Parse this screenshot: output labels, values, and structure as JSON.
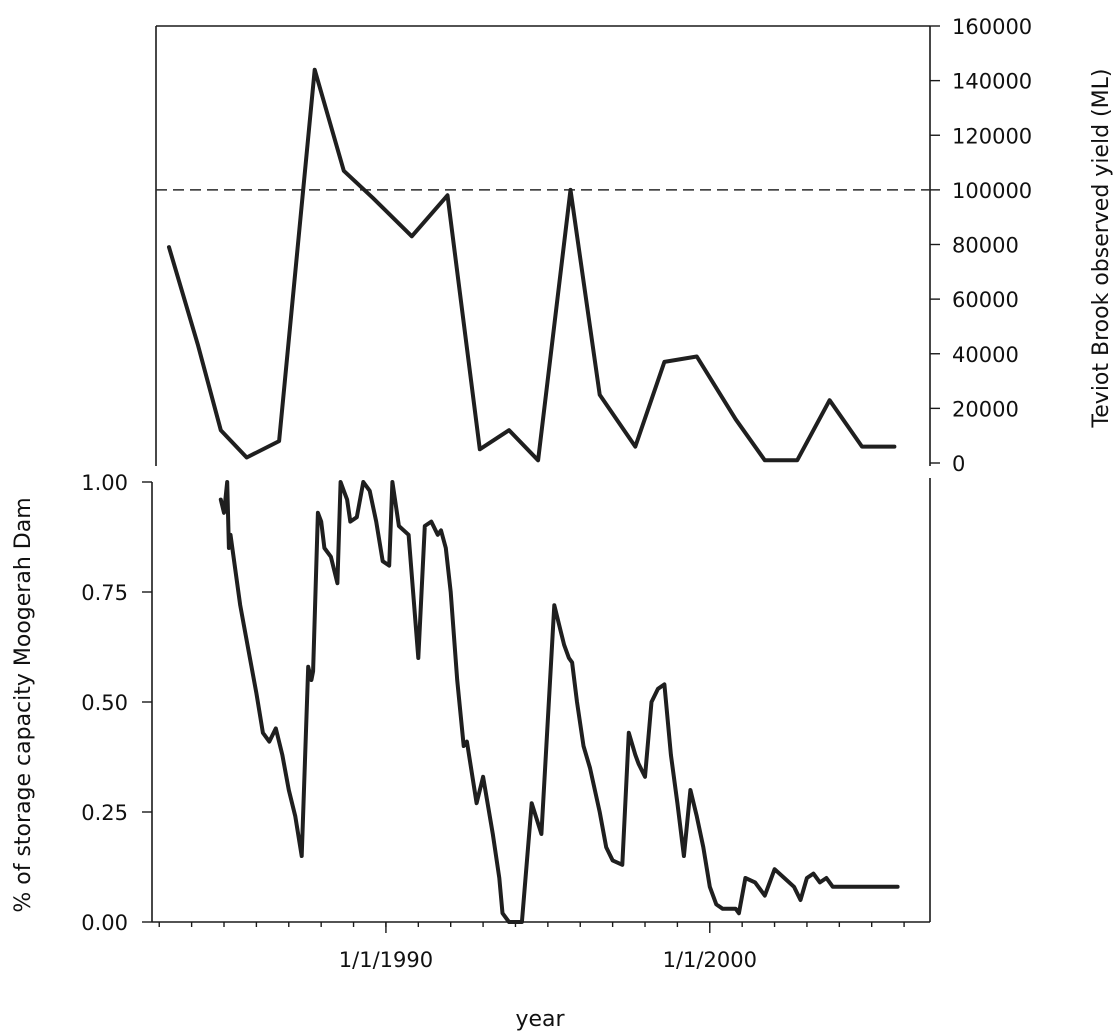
{
  "chart_data": [
    {
      "panel": "top",
      "type": "line",
      "xlabel": "year",
      "ylabel": "Teviot Brook observed yield (ML)",
      "y_axis_side": "right",
      "ylim": [
        0,
        160000
      ],
      "yticks": [
        "0",
        "20000",
        "40000",
        "60000",
        "80000",
        "100000",
        "120000",
        "140000",
        "160000"
      ],
      "x_unit": "year (decimal)",
      "reference_line": {
        "y": 100000,
        "style": "dashed"
      },
      "series": [
        {
          "x": [
            1983.3,
            1984.2,
            1984.9,
            1985.7,
            1986.7,
            1987.8,
            1988.7,
            1989.6,
            1990.8,
            1991.9,
            1992.9,
            1993.8,
            1994.7,
            1995.7,
            1996.6,
            1997.7,
            1998.6,
            1999.6,
            2000.8,
            2001.7,
            2002.7,
            2003.7,
            2004.7,
            2005.7
          ],
          "y": [
            79000,
            43000,
            12000,
            2000,
            8000,
            144000,
            107000,
            97000,
            83000,
            98000,
            5000,
            12000,
            1000,
            100000,
            25000,
            6000,
            37000,
            39000,
            16000,
            1000,
            1000,
            23000,
            6000,
            6000
          ]
        }
      ]
    },
    {
      "panel": "bottom",
      "type": "line",
      "xlabel": "year",
      "ylabel": "% of storage capacity Moogerah Dam",
      "y_axis_side": "left",
      "ylim": [
        0,
        1
      ],
      "yticks": [
        "0.00",
        "0.25",
        "0.50",
        "0.75",
        "1.00"
      ],
      "x_unit": "year (decimal)",
      "xlim": [
        1982.9,
        2006.8
      ],
      "xticks": [
        {
          "x": 1990.0,
          "label": "1/1/1990"
        },
        {
          "x": 2000.0,
          "label": "1/1/2000"
        }
      ],
      "series": [
        {
          "x": [
            1984.9,
            1985.0,
            1985.1,
            1985.15,
            1985.2,
            1985.5,
            1985.8,
            1986.0,
            1986.2,
            1986.4,
            1986.6,
            1986.8,
            1987.0,
            1987.2,
            1987.4,
            1987.6,
            1987.7,
            1987.75,
            1987.9,
            1988.0,
            1988.1,
            1988.3,
            1988.5,
            1988.6,
            1988.7,
            1988.8,
            1988.9,
            1989.1,
            1989.3,
            1989.5,
            1989.7,
            1989.9,
            1990.1,
            1990.2,
            1990.4,
            1990.7,
            1991.0,
            1991.2,
            1991.4,
            1991.6,
            1991.7,
            1991.85,
            1992.0,
            1992.2,
            1992.4,
            1992.5,
            1992.8,
            1993.0,
            1993.3,
            1993.5,
            1993.6,
            1993.8,
            1994.2,
            1994.5,
            1994.8,
            1995.2,
            1995.4,
            1995.5,
            1995.65,
            1995.75,
            1995.9,
            1996.1,
            1996.3,
            1996.6,
            1996.8,
            1997.0,
            1997.3,
            1997.5,
            1997.7,
            1997.8,
            1998.0,
            1998.2,
            1998.4,
            1998.6,
            1998.8,
            1999.0,
            1999.2,
            1999.4,
            1999.6,
            1999.8,
            2000.0,
            2000.2,
            2000.4,
            2000.6,
            2000.8,
            2000.9,
            2001.1,
            2001.4,
            2001.7,
            2002.0,
            2002.3,
            2002.6,
            2002.8,
            2003.0,
            2003.2,
            2003.4,
            2003.6,
            2003.8,
            2004.0,
            2004.2,
            2004.4,
            2004.6,
            2004.8,
            2005.0,
            2005.2,
            2005.4,
            2005.6,
            2005.8
          ],
          "y": [
            0.96,
            0.93,
            1.0,
            0.85,
            0.88,
            0.72,
            0.6,
            0.52,
            0.43,
            0.41,
            0.44,
            0.38,
            0.3,
            0.24,
            0.15,
            0.58,
            0.55,
            0.57,
            0.93,
            0.91,
            0.85,
            0.83,
            0.77,
            1.0,
            0.98,
            0.96,
            0.91,
            0.92,
            1.0,
            0.98,
            0.91,
            0.82,
            0.81,
            1.0,
            0.9,
            0.88,
            0.6,
            0.9,
            0.91,
            0.88,
            0.89,
            0.85,
            0.75,
            0.55,
            0.4,
            0.41,
            0.27,
            0.33,
            0.2,
            0.1,
            0.02,
            0.0,
            0.0,
            0.27,
            0.2,
            0.72,
            0.66,
            0.63,
            0.6,
            0.59,
            0.5,
            0.4,
            0.35,
            0.25,
            0.17,
            0.14,
            0.13,
            0.43,
            0.38,
            0.36,
            0.33,
            0.5,
            0.53,
            0.54,
            0.38,
            0.27,
            0.15,
            0.3,
            0.24,
            0.17,
            0.08,
            0.04,
            0.03,
            0.03,
            0.03,
            0.02,
            0.1,
            0.09,
            0.06,
            0.12,
            0.1,
            0.08,
            0.05,
            0.1,
            0.11,
            0.09,
            0.1,
            0.08,
            0.08,
            0.08,
            0.08,
            0.08,
            0.08,
            0.08,
            0.08,
            0.08,
            0.08,
            0.08
          ]
        }
      ]
    }
  ]
}
